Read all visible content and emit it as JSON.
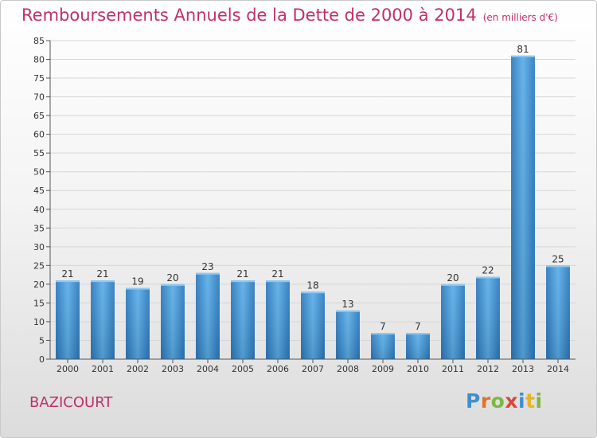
{
  "chart_data": {
    "type": "bar",
    "title": "Remboursements Annuels de la Dette de 2000 à 2014",
    "unit": "(en milliers d'€)",
    "categories": [
      "2000",
      "2001",
      "2002",
      "2003",
      "2004",
      "2005",
      "2006",
      "2007",
      "2008",
      "2009",
      "2010",
      "2011",
      "2012",
      "2013",
      "2014"
    ],
    "values": [
      21,
      21,
      19,
      20,
      23,
      21,
      21,
      18,
      13,
      7,
      7,
      20,
      22,
      81,
      25
    ],
    "xlabel": "",
    "ylabel": "",
    "ylim": [
      0,
      85
    ],
    "yticks": [
      0,
      5,
      10,
      15,
      20,
      25,
      30,
      35,
      40,
      45,
      50,
      55,
      60,
      65,
      70,
      75,
      80,
      85
    ],
    "grid": true,
    "bar_color": "#3d94d6"
  },
  "commune": "BAZICOURT",
  "logo": {
    "letters": [
      "P",
      "r",
      "o",
      "x",
      "i",
      "t",
      "i"
    ],
    "colors": [
      "#3f8fd0",
      "#e0732a",
      "#7cb842",
      "#d9473a",
      "#3f8fd0",
      "#e8b426",
      "#7cb842"
    ]
  }
}
